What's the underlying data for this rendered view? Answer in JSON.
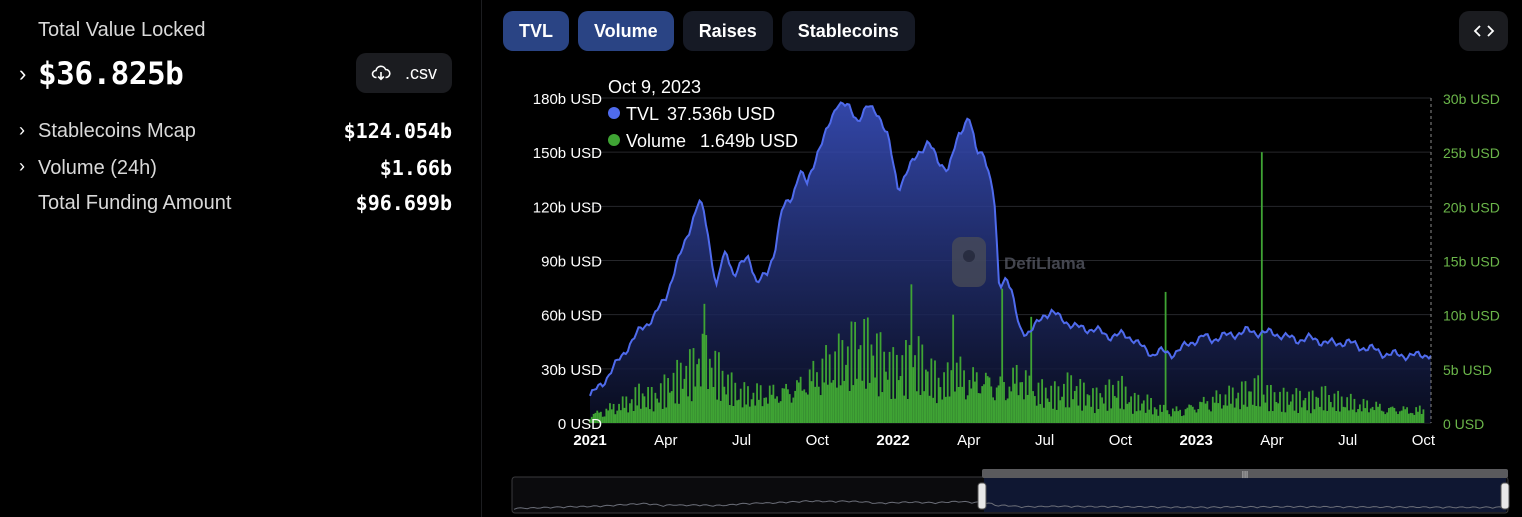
{
  "summary": {
    "tvl_label": "Total Value Locked",
    "tvl_value": "$36.825b",
    "csv_label": ".csv",
    "stats": [
      {
        "label": "Stablecoins Mcap",
        "value": "$124.054b",
        "expandable": true
      },
      {
        "label": "Volume (24h)",
        "value": "$1.66b",
        "expandable": true
      },
      {
        "label": "Total Funding Amount",
        "value": "$96.699b",
        "expandable": false
      }
    ]
  },
  "tabs": [
    {
      "label": "TVL",
      "active": true
    },
    {
      "label": "Volume",
      "active": true
    },
    {
      "label": "Raises",
      "active": false
    },
    {
      "label": "Stablecoins",
      "active": false
    }
  ],
  "watermark": "DefiLlama",
  "chart_data": {
    "type": "line",
    "title": "",
    "tooltip": {
      "date": "Oct 9, 2023",
      "entries": [
        {
          "series": "TVL",
          "value": "37.536b USD",
          "color": "#4f6bed"
        },
        {
          "series": "Volume",
          "value": "1.649b USD",
          "color": "#3fa434"
        }
      ]
    },
    "x_ticks": [
      {
        "label": "2021",
        "t": 0,
        "bold": true
      },
      {
        "label": "Apr",
        "t": 3,
        "bold": false
      },
      {
        "label": "Jul",
        "t": 6,
        "bold": false
      },
      {
        "label": "Oct",
        "t": 9,
        "bold": false
      },
      {
        "label": "2022",
        "t": 12,
        "bold": true
      },
      {
        "label": "Apr",
        "t": 15,
        "bold": false
      },
      {
        "label": "Jul",
        "t": 18,
        "bold": false
      },
      {
        "label": "Oct",
        "t": 21,
        "bold": false
      },
      {
        "label": "2023",
        "t": 24,
        "bold": true
      },
      {
        "label": "Apr",
        "t": 27,
        "bold": false
      },
      {
        "label": "Jul",
        "t": 30,
        "bold": false
      },
      {
        "label": "Oct",
        "t": 33,
        "bold": false
      }
    ],
    "xlim": [
      0,
      33.3
    ],
    "y_left": {
      "ticks": [
        "0 USD",
        "30b USD",
        "60b USD",
        "90b USD",
        "120b USD",
        "150b USD",
        "180b USD"
      ],
      "ylim": [
        0,
        180
      ],
      "unit": "b USD"
    },
    "y_right": {
      "ticks": [
        "0 USD",
        "5b USD",
        "10b USD",
        "15b USD",
        "20b USD",
        "25b USD",
        "30b USD"
      ],
      "ylim": [
        0,
        30
      ],
      "unit": "b USD"
    },
    "series": [
      {
        "name": "TVL",
        "axis": "left",
        "color": "#4f6bed",
        "x": [
          0,
          0.5,
          1.0,
          1.5,
          2.0,
          2.5,
          3.0,
          3.5,
          4.0,
          4.3,
          4.5,
          4.7,
          5.0,
          5.2,
          5.4,
          5.7,
          6.0,
          6.3,
          6.6,
          7.0,
          7.3,
          7.6,
          8.0,
          8.3,
          8.6,
          9.0,
          9.4,
          9.8,
          10.2,
          10.6,
          11.0,
          11.4,
          11.8,
          12.2,
          12.6,
          13.0,
          13.4,
          13.8,
          14.2,
          14.6,
          15.0,
          15.3,
          15.6,
          16.0,
          16.2,
          16.5,
          16.7,
          17.0,
          17.3,
          17.6,
          18.0,
          18.3,
          18.6,
          19.0,
          19.3,
          19.6,
          20.0,
          20.5,
          21.0,
          21.5,
          22.0,
          22.3,
          22.5,
          23.0,
          23.5,
          24.0,
          24.3,
          24.6,
          25.0,
          25.5,
          26.0,
          26.5,
          27.0,
          27.5,
          28.0,
          28.5,
          29.0,
          29.5,
          30.0,
          30.5,
          31.0,
          31.5,
          32.0,
          32.5,
          33.0,
          33.3
        ],
        "values": [
          15,
          22,
          32,
          42,
          52,
          58,
          70,
          90,
          110,
          122,
          118,
          102,
          75,
          88,
          95,
          82,
          88,
          92,
          78,
          82,
          95,
          118,
          125,
          140,
          132,
          150,
          162,
          178,
          175,
          168,
          175,
          172,
          158,
          130,
          140,
          150,
          155,
          145,
          140,
          160,
          170,
          150,
          150,
          125,
          75,
          82,
          72,
          52,
          50,
          53,
          60,
          62,
          58,
          55,
          53,
          52,
          52,
          48,
          49,
          47,
          40,
          38,
          40,
          38,
          42,
          46,
          48,
          46,
          48,
          49,
          51,
          50,
          50,
          48,
          46,
          47,
          45,
          44,
          45,
          42,
          41,
          38,
          38,
          37,
          38,
          37.5
        ]
      },
      {
        "name": "Volume",
        "axis": "right",
        "color": "#3fa434",
        "x": [
          0,
          0.5,
          1.0,
          1.5,
          2.0,
          2.5,
          3.0,
          3.5,
          4.0,
          4.5,
          5.0,
          5.5,
          6.0,
          6.5,
          7.0,
          7.5,
          8.0,
          8.5,
          9.0,
          9.5,
          10.0,
          10.5,
          11.0,
          11.5,
          12.0,
          12.5,
          13.0,
          13.5,
          14.0,
          14.5,
          15.0,
          15.5,
          16.0,
          16.5,
          17.0,
          17.5,
          18.0,
          18.5,
          19.0,
          19.5,
          20.0,
          20.5,
          21.0,
          21.5,
          22.0,
          22.5,
          23.0,
          23.5,
          24.0,
          24.5,
          25.0,
          25.5,
          26.0,
          26.5,
          27.0,
          27.5,
          28.0,
          28.5,
          29.0,
          29.5,
          30.0,
          30.5,
          31.0,
          31.5,
          32.0,
          32.5,
          33.0
        ],
        "values": [
          1.0,
          1.6,
          2.2,
          2.6,
          3.5,
          2.8,
          3.8,
          4.8,
          5.6,
          7.0,
          5.8,
          4.2,
          3.4,
          3.6,
          3.8,
          4.1,
          4.6,
          5.4,
          6.4,
          7.2,
          7.6,
          8.4,
          8.2,
          6.8,
          5.6,
          6.2,
          6.8,
          5.4,
          4.6,
          6.4,
          5.4,
          6.0,
          5.2,
          4.8,
          6.2,
          3.8,
          3.6,
          3.2,
          4.0,
          3.2,
          2.6,
          3.2,
          3.8,
          2.4,
          2.6,
          1.8,
          1.6,
          1.8,
          2.4,
          3.0,
          3.2,
          3.4,
          3.6,
          3.8,
          2.8,
          2.6,
          2.6,
          2.4,
          3.0,
          2.6,
          2.6,
          2.2,
          2.4,
          1.8,
          2.0,
          1.6,
          1.7
        ]
      }
    ],
    "volume_spikes": [
      {
        "t": 4.5,
        "value": 11.0
      },
      {
        "t": 12.7,
        "value": 12.8
      },
      {
        "t": 14.4,
        "value": 10.0
      },
      {
        "t": 16.3,
        "value": 12.4
      },
      {
        "t": 17.5,
        "value": 9.8
      },
      {
        "t": 22.8,
        "value": 12.1
      },
      {
        "t": 26.6,
        "value": 25.0
      }
    ]
  }
}
